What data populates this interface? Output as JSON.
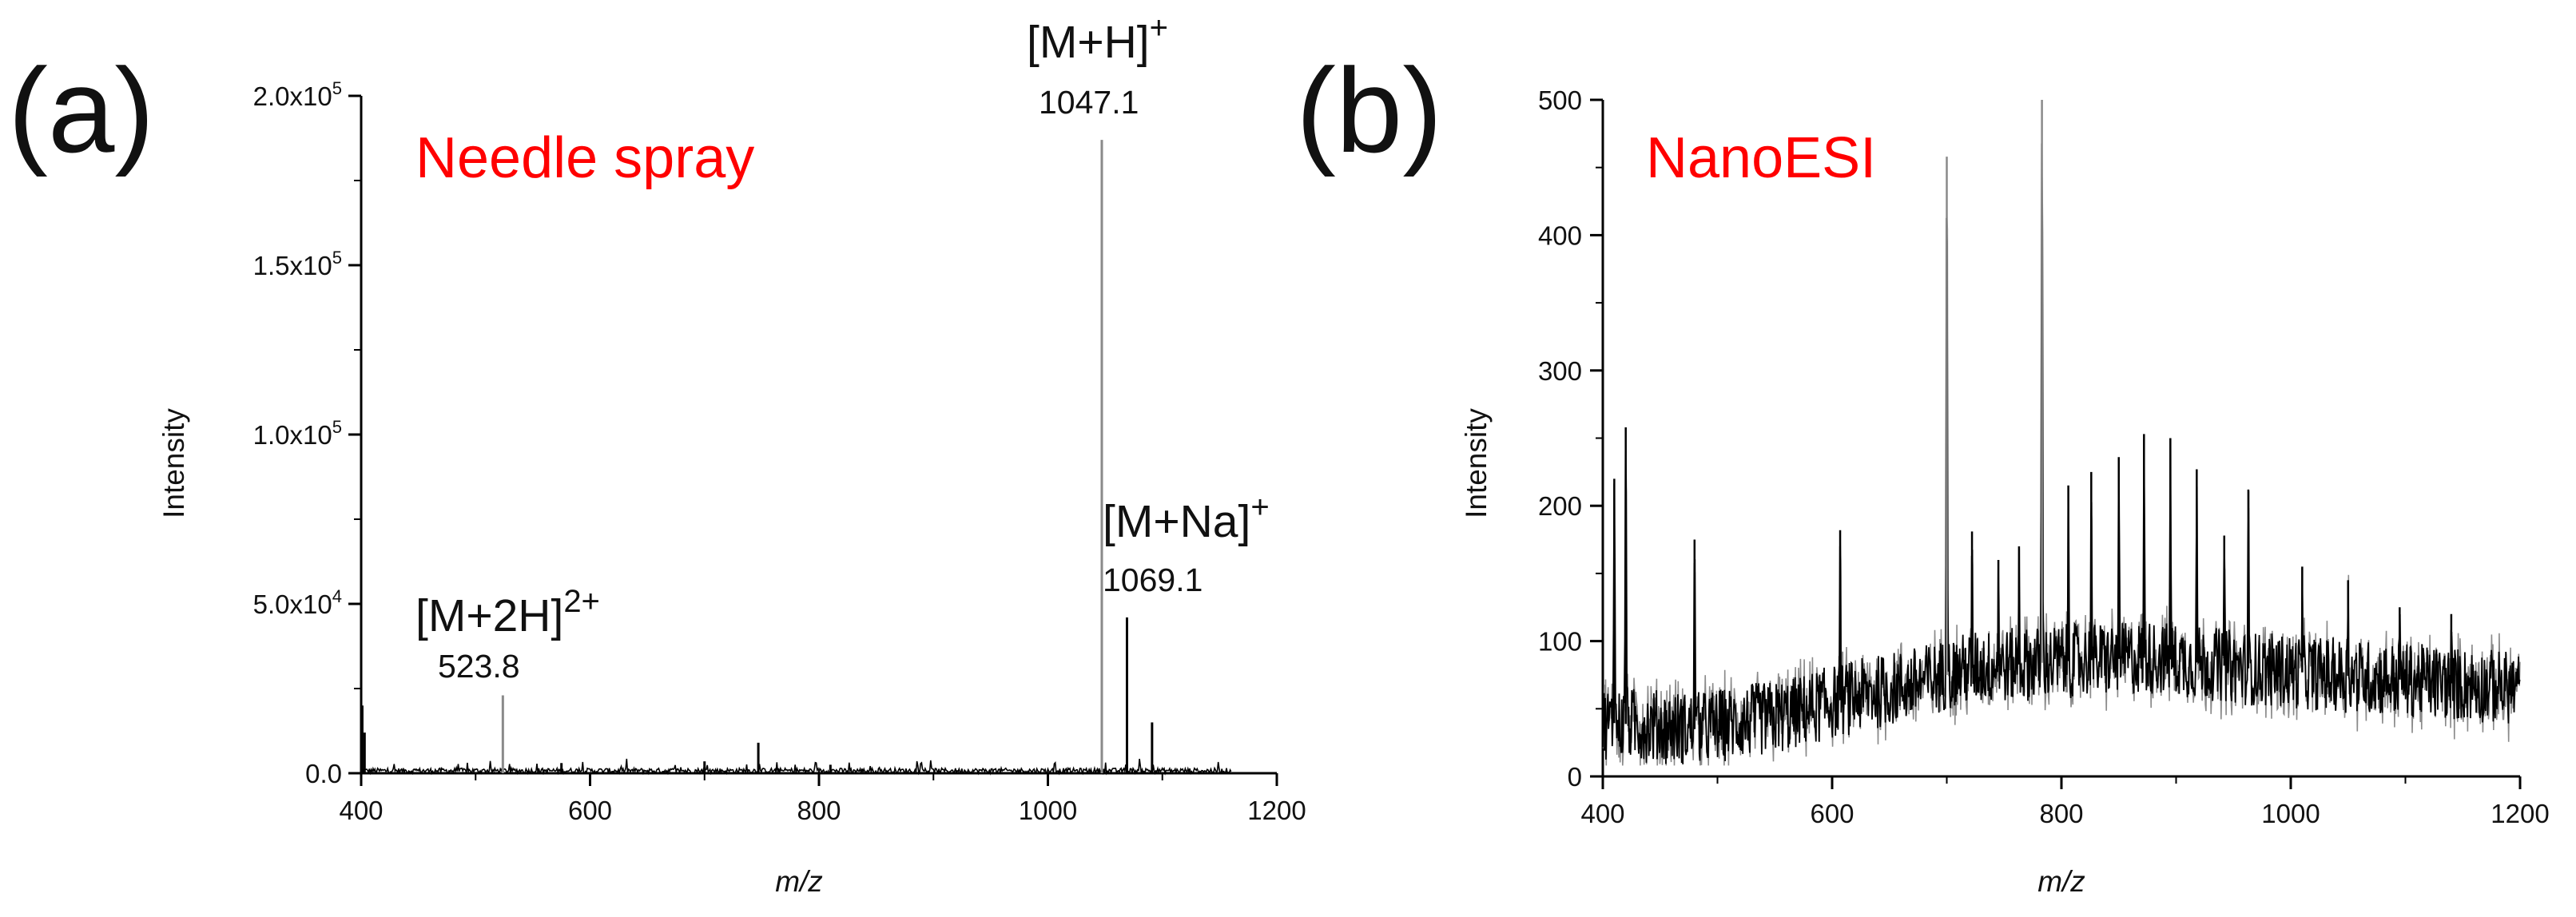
{
  "colors": {
    "annotation": "#ff0000",
    "trace": "#000000",
    "trace_light": "#8a8a8a",
    "axis": "#000000"
  },
  "chart_data": [
    {
      "panel": "(a)",
      "type": "line",
      "title": "Needle spray",
      "xlabel": "m/z",
      "ylabel": "Intensity",
      "xlim": [
        400,
        1200
      ],
      "ylim": [
        0,
        200000
      ],
      "xticks": [
        400,
        600,
        800,
        1000,
        1200
      ],
      "yticks": [
        {
          "value": 0,
          "mantissa": "0.0",
          "exponent": ""
        },
        {
          "value": 50000,
          "mantissa": "5.0x10",
          "exponent": "4"
        },
        {
          "value": 100000,
          "mantissa": "1.0x10",
          "exponent": "5"
        },
        {
          "value": 150000,
          "mantissa": "1.5x10",
          "exponent": "5"
        },
        {
          "value": 200000,
          "mantissa": "2.0x10",
          "exponent": "5"
        }
      ],
      "peaks": [
        {
          "x": 401,
          "y": 20000
        },
        {
          "x": 403,
          "y": 12000
        },
        {
          "x": 523.8,
          "y": 23000
        },
        {
          "x": 575,
          "y": 3000
        },
        {
          "x": 700,
          "y": 3500
        },
        {
          "x": 747,
          "y": 9000
        },
        {
          "x": 810,
          "y": 2500
        },
        {
          "x": 1047.1,
          "y": 187000
        },
        {
          "x": 1069.1,
          "y": 46000
        },
        {
          "x": 1091,
          "y": 15000
        }
      ],
      "annotations": [
        {
          "ion": "[M+2H]",
          "charge": "2+",
          "mz": "523.8"
        },
        {
          "ion": "[M+H]",
          "charge": "+",
          "mz": "1047.1"
        },
        {
          "ion": "[M+Na]",
          "charge": "+",
          "mz": "1069.1"
        }
      ]
    },
    {
      "panel": "(b)",
      "type": "line",
      "title": "NanoESI",
      "xlabel": "m/z",
      "ylabel": "Intensity",
      "xlim": [
        400,
        1200
      ],
      "ylim": [
        0,
        500
      ],
      "xticks": [
        400,
        600,
        800,
        1000,
        1200
      ],
      "yticks": [
        0,
        100,
        200,
        300,
        400,
        500
      ],
      "baseline": [
        [
          400,
          40
        ],
        [
          480,
          35
        ],
        [
          560,
          45
        ],
        [
          600,
          55
        ],
        [
          680,
          70
        ],
        [
          720,
          80
        ],
        [
          800,
          85
        ],
        [
          880,
          88
        ],
        [
          960,
          80
        ],
        [
          1040,
          75
        ],
        [
          1120,
          70
        ],
        [
          1200,
          65
        ]
      ],
      "peaks": [
        {
          "x": 410,
          "y": 220
        },
        {
          "x": 420,
          "y": 258
        },
        {
          "x": 480,
          "y": 175
        },
        {
          "x": 607,
          "y": 182
        },
        {
          "x": 700,
          "y": 458
        },
        {
          "x": 722,
          "y": 181
        },
        {
          "x": 745,
          "y": 160
        },
        {
          "x": 763,
          "y": 170
        },
        {
          "x": 783,
          "y": 500
        },
        {
          "x": 806,
          "y": 215
        },
        {
          "x": 826,
          "y": 225
        },
        {
          "x": 850,
          "y": 236
        },
        {
          "x": 872,
          "y": 253
        },
        {
          "x": 895,
          "y": 250
        },
        {
          "x": 918,
          "y": 227
        },
        {
          "x": 942,
          "y": 178
        },
        {
          "x": 963,
          "y": 212
        },
        {
          "x": 1010,
          "y": 155
        },
        {
          "x": 1050,
          "y": 145
        },
        {
          "x": 1095,
          "y": 125
        },
        {
          "x": 1140,
          "y": 120
        }
      ]
    }
  ]
}
